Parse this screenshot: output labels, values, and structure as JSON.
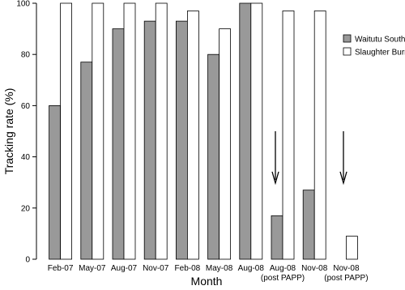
{
  "chart_data": {
    "type": "bar",
    "x_label": "Month",
    "y_label": "Tracking rate (%)",
    "categories": [
      "Feb-07",
      "May-07",
      "Aug-07",
      "Nov-07",
      "Feb-08",
      "May-08",
      "Aug-08",
      "Aug-08\n(post PAPP)",
      "Nov-08",
      "Nov-08\n(post PAPP)"
    ],
    "series": [
      {
        "name": "Waitutu South",
        "color": "#999999",
        "values": [
          60,
          77,
          90,
          93,
          93,
          80,
          100,
          17,
          27,
          null
        ]
      },
      {
        "name": "Slaughter Burn",
        "color": "#ffffff",
        "values": [
          100,
          100,
          100,
          100,
          97,
          90,
          100,
          97,
          97,
          9
        ]
      }
    ],
    "ylim": [
      0,
      100
    ],
    "yticks": [
      0,
      20,
      40,
      60,
      80,
      100
    ],
    "grid": false,
    "legend": "upper right"
  }
}
